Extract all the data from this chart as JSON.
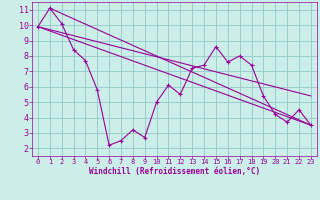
{
  "xlabel": "Windchill (Refroidissement éolien,°C)",
  "background_color": "#cceee8",
  "line_color": "#990099",
  "grid_color": "#99cccc",
  "xlim": [
    -0.5,
    23.5
  ],
  "ylim": [
    1.5,
    11.5
  ],
  "yticks": [
    2,
    3,
    4,
    5,
    6,
    7,
    8,
    9,
    10,
    11
  ],
  "xticks": [
    0,
    1,
    2,
    3,
    4,
    5,
    6,
    7,
    8,
    9,
    10,
    11,
    12,
    13,
    14,
    15,
    16,
    17,
    18,
    19,
    20,
    21,
    22,
    23
  ],
  "series1_x": [
    0,
    1,
    2,
    3,
    4,
    5,
    6,
    7,
    8,
    9,
    10,
    11,
    12,
    13,
    14,
    15,
    16,
    17,
    18,
    19,
    20,
    21,
    22,
    23
  ],
  "series1_y": [
    9.9,
    11.1,
    10.1,
    8.4,
    7.7,
    5.8,
    2.2,
    2.5,
    3.2,
    2.7,
    5.0,
    6.1,
    5.5,
    7.2,
    7.4,
    8.6,
    7.6,
    8.0,
    7.4,
    5.4,
    4.2,
    3.7,
    4.5,
    3.5
  ],
  "trend1_x": [
    0,
    23
  ],
  "trend1_y": [
    9.9,
    3.5
  ],
  "trend2_x": [
    0,
    23
  ],
  "trend2_y": [
    9.9,
    5.4
  ],
  "trend3_x": [
    1,
    23
  ],
  "trend3_y": [
    11.1,
    3.5
  ]
}
